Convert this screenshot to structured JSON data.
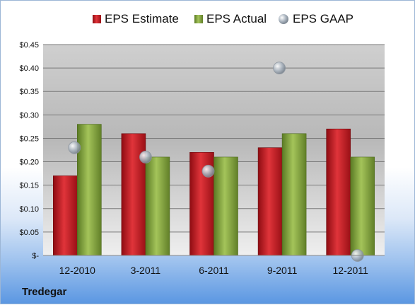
{
  "chart_data": {
    "type": "bar",
    "categories": [
      "12-2010",
      "3-2011",
      "6-2011",
      "9-2011",
      "12-2011"
    ],
    "series": [
      {
        "name": "EPS Estimate",
        "kind": "bar",
        "color": "#c0141c",
        "values": [
          0.17,
          0.26,
          0.22,
          0.23,
          0.27
        ]
      },
      {
        "name": "EPS Actual",
        "kind": "bar",
        "color": "#7ea23a",
        "values": [
          0.28,
          0.21,
          0.21,
          0.26,
          0.21
        ]
      },
      {
        "name": "EPS GAAP",
        "kind": "marker",
        "color": "#aab4bf",
        "values": [
          0.23,
          0.21,
          0.18,
          0.4,
          0.0
        ]
      }
    ],
    "yticks": [
      "$-",
      "$0.05",
      "$0.10",
      "$0.15",
      "$0.20",
      "$0.25",
      "$0.30",
      "$0.35",
      "$0.40",
      "$0.45"
    ],
    "ylim": [
      0,
      0.45
    ],
    "grid": true,
    "legend_position": "top",
    "company": "Tredegar"
  }
}
